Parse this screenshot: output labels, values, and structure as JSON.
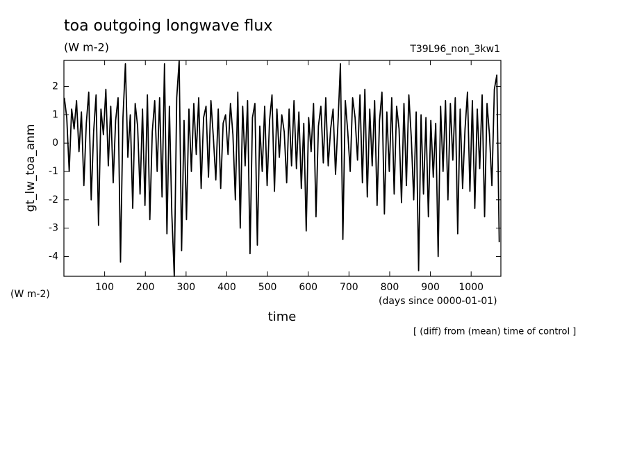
{
  "chart_data": {
    "type": "line",
    "title": "toa outgoing longwave flux",
    "subtitle": "(W m-2)",
    "run_label": "T39L96_non_3kw1",
    "ylabel": "gt_lw_toa_anm",
    "yunit": "(W m-2)",
    "xlabel": "time",
    "xunit": "(days since 0000-01-01)",
    "note": "[ (diff) from (mean) time of control ]",
    "color": "#000000",
    "xlim": [
      0,
      1073
    ],
    "ylim": [
      -4.7,
      2.92
    ],
    "xticks": [
      100,
      200,
      300,
      400,
      500,
      600,
      700,
      800,
      900,
      1000
    ],
    "yticks": [
      -4,
      -3,
      -2,
      -1,
      0,
      1,
      2
    ],
    "x": [
      1,
      7,
      13,
      19,
      25,
      31,
      37,
      43,
      49,
      55,
      61,
      67,
      73,
      79,
      85,
      91,
      97,
      103,
      109,
      115,
      121,
      127,
      133,
      139,
      145,
      151,
      157,
      163,
      169,
      175,
      181,
      187,
      193,
      199,
      205,
      211,
      217,
      223,
      229,
      235,
      241,
      247,
      253,
      259,
      265,
      271,
      277,
      283,
      289,
      295,
      301,
      307,
      313,
      319,
      325,
      331,
      337,
      343,
      349,
      355,
      361,
      367,
      373,
      379,
      385,
      391,
      397,
      403,
      409,
      415,
      421,
      427,
      433,
      439,
      445,
      451,
      457,
      463,
      469,
      475,
      481,
      487,
      493,
      499,
      505,
      511,
      517,
      523,
      529,
      535,
      541,
      547,
      553,
      559,
      565,
      571,
      577,
      583,
      589,
      595,
      601,
      607,
      613,
      619,
      625,
      631,
      637,
      643,
      649,
      655,
      661,
      667,
      673,
      679,
      685,
      691,
      697,
      703,
      709,
      715,
      721,
      727,
      733,
      739,
      745,
      751,
      757,
      763,
      769,
      775,
      781,
      787,
      793,
      799,
      805,
      811,
      817,
      823,
      829,
      835,
      841,
      847,
      853,
      859,
      865,
      871,
      877,
      883,
      889,
      895,
      901,
      907,
      913,
      919,
      925,
      931,
      937,
      943,
      949,
      955,
      961,
      967,
      973,
      979,
      985,
      991,
      997,
      1003,
      1009,
      1015,
      1021,
      1027,
      1033,
      1039,
      1045,
      1051,
      1057,
      1063,
      1069
    ],
    "values": [
      1.6,
      0.9,
      -1.0,
      1.2,
      0.5,
      1.5,
      -0.3,
      1.1,
      -1.5,
      0.7,
      1.8,
      -2.0,
      0.4,
      1.7,
      -2.9,
      1.2,
      0.3,
      1.9,
      -0.8,
      1.3,
      -1.4,
      0.8,
      1.6,
      -4.2,
      0.9,
      2.8,
      -0.5,
      1.0,
      -2.3,
      1.4,
      0.6,
      -1.8,
      1.2,
      -2.2,
      1.7,
      -2.7,
      0.4,
      1.5,
      -1.0,
      1.6,
      -1.9,
      2.8,
      -3.2,
      1.3,
      -2.5,
      -4.7,
      1.6,
      2.9,
      -3.8,
      0.8,
      -2.7,
      1.2,
      -1.0,
      1.4,
      -0.4,
      1.6,
      -1.6,
      0.9,
      1.3,
      -1.2,
      1.5,
      0.2,
      -1.3,
      1.2,
      -1.6,
      0.7,
      1.0,
      -0.4,
      1.4,
      0.3,
      -2.0,
      1.8,
      -3.0,
      1.3,
      -0.8,
      1.5,
      -3.9,
      0.9,
      1.4,
      -3.6,
      0.6,
      -1.0,
      1.3,
      -1.5,
      0.8,
      1.7,
      -1.7,
      1.2,
      -0.5,
      1.0,
      0.4,
      -1.4,
      1.2,
      -0.8,
      1.5,
      -0.9,
      1.1,
      -1.6,
      0.7,
      -3.1,
      0.9,
      -0.3,
      1.4,
      -2.6,
      0.6,
      1.3,
      -0.7,
      1.6,
      -0.8,
      0.5,
      1.2,
      -1.1,
      0.7,
      2.8,
      -3.4,
      1.5,
      0.4,
      -1.0,
      1.6,
      0.9,
      -0.6,
      1.7,
      -1.4,
      1.9,
      -1.9,
      1.2,
      -0.8,
      1.5,
      -2.2,
      0.8,
      1.8,
      -2.5,
      1.1,
      -1.0,
      1.6,
      -1.8,
      1.3,
      0.5,
      -2.1,
      1.4,
      -1.5,
      1.7,
      0.2,
      -2.0,
      1.1,
      -4.5,
      1.0,
      -1.8,
      0.9,
      -2.6,
      0.8,
      -1.2,
      0.7,
      -4.0,
      1.3,
      -1.0,
      1.5,
      -2.0,
      1.4,
      -0.6,
      1.6,
      -3.2,
      1.2,
      -1.6,
      0.5,
      1.8,
      -1.7,
      1.5,
      -2.3,
      1.2,
      -0.9,
      1.7,
      -2.6,
      1.4,
      0.3,
      -1.5,
      1.9,
      2.4,
      -3.5
    ]
  }
}
